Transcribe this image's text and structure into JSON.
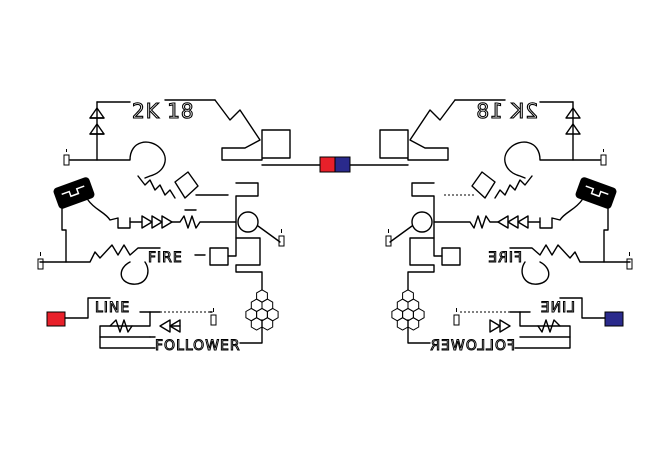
{
  "colors": {
    "red": "#e8202a",
    "blue": "#2a2a8c",
    "ink": "#000000",
    "background": "#ffffff"
  },
  "labels": {
    "rating": "2K 18",
    "fire": "FIRE",
    "line": "LINE",
    "follower": "FOLLOWER"
  },
  "icons": [
    "candle-icon",
    "diode-icon",
    "resistor-icon",
    "hexagon-cluster-icon",
    "chip-icon"
  ]
}
